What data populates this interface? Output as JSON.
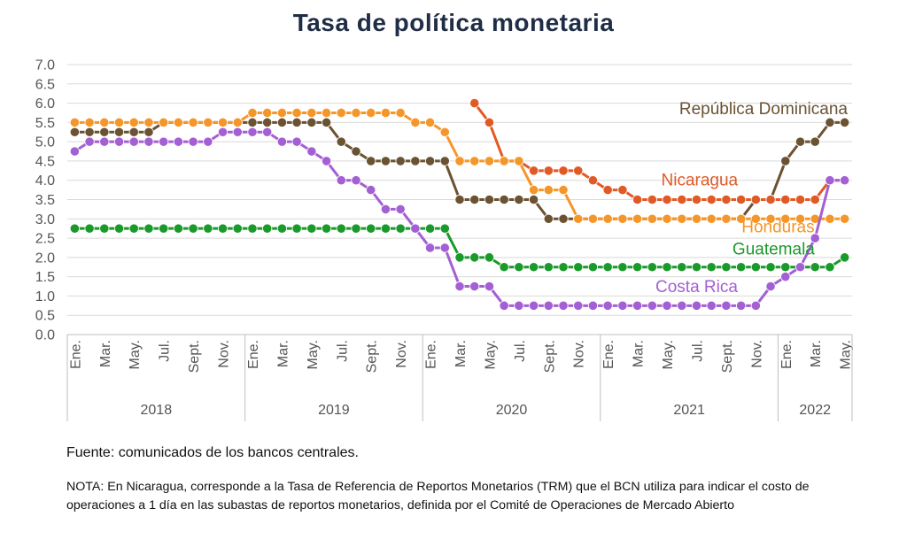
{
  "chart_data": {
    "type": "line",
    "title": "Tasa de política monetaria",
    "xlabel": "",
    "ylabel": "",
    "ylim": [
      0,
      7
    ],
    "yticks": [
      "0.0",
      "0.5",
      "1.0",
      "1.5",
      "2.0",
      "2.5",
      "3.0",
      "3.5",
      "4.0",
      "4.5",
      "5.0",
      "5.5",
      "6.0",
      "6.5",
      "7.0"
    ],
    "x": [
      "2018-01",
      "2018-02",
      "2018-03",
      "2018-04",
      "2018-05",
      "2018-06",
      "2018-07",
      "2018-08",
      "2018-09",
      "2018-10",
      "2018-11",
      "2018-12",
      "2019-01",
      "2019-02",
      "2019-03",
      "2019-04",
      "2019-05",
      "2019-06",
      "2019-07",
      "2019-08",
      "2019-09",
      "2019-10",
      "2019-11",
      "2019-12",
      "2020-01",
      "2020-02",
      "2020-03",
      "2020-04",
      "2020-05",
      "2020-06",
      "2020-07",
      "2020-08",
      "2020-09",
      "2020-10",
      "2020-11",
      "2020-12",
      "2021-01",
      "2021-02",
      "2021-03",
      "2021-04",
      "2021-05",
      "2021-06",
      "2021-07",
      "2021-08",
      "2021-09",
      "2021-10",
      "2021-11",
      "2021-12",
      "2022-01",
      "2022-02",
      "2022-03",
      "2022-04",
      "2022-05"
    ],
    "x_tick_labels": [
      "Ene.",
      "",
      "Mar.",
      "",
      "May.",
      "",
      "Jul.",
      "",
      "Sept.",
      "",
      "Nov.",
      "",
      "Ene.",
      "",
      "Mar.",
      "",
      "May.",
      "",
      "Jul.",
      "",
      "Sept.",
      "",
      "Nov.",
      "",
      "Ene.",
      "",
      "Mar.",
      "",
      "May.",
      "",
      "Jul.",
      "",
      "Sept.",
      "",
      "Nov.",
      "",
      "Ene.",
      "",
      "Mar.",
      "",
      "May.",
      "",
      "Jul.",
      "",
      "Sept.",
      "",
      "Nov.",
      "",
      "Ene.",
      "",
      "Mar.",
      "",
      "May."
    ],
    "year_groups": [
      {
        "label": "2018",
        "start": 0,
        "end": 11
      },
      {
        "label": "2019",
        "start": 12,
        "end": 23
      },
      {
        "label": "2020",
        "start": 24,
        "end": 35
      },
      {
        "label": "2021",
        "start": 36,
        "end": 47
      },
      {
        "label": "2022",
        "start": 48,
        "end": 52
      }
    ],
    "grid": true,
    "legend": "inline labels",
    "series": [
      {
        "name": "República Dominicana",
        "color": "#6b5232",
        "label_anchor": "end",
        "values": [
          5.25,
          5.25,
          5.25,
          5.25,
          5.25,
          5.25,
          5.5,
          5.5,
          5.5,
          5.5,
          5.5,
          5.5,
          5.5,
          5.5,
          5.5,
          5.5,
          5.5,
          5.5,
          5.0,
          4.75,
          4.5,
          4.5,
          4.5,
          4.5,
          4.5,
          4.5,
          3.5,
          3.5,
          3.5,
          3.5,
          3.5,
          3.5,
          3.0,
          3.0,
          3.0,
          3.0,
          3.0,
          3.0,
          3.0,
          3.0,
          3.0,
          3.0,
          3.0,
          3.0,
          3.0,
          3.0,
          3.5,
          3.5,
          4.5,
          5.0,
          5.0,
          5.5,
          5.5
        ]
      },
      {
        "name": "Nicaragua",
        "color": "#e05a26",
        "label_anchor": "middle",
        "values": [
          null,
          null,
          null,
          null,
          null,
          null,
          null,
          null,
          null,
          null,
          null,
          null,
          null,
          null,
          null,
          null,
          null,
          null,
          null,
          null,
          null,
          null,
          null,
          null,
          null,
          null,
          null,
          6.0,
          5.5,
          4.5,
          4.5,
          4.25,
          4.25,
          4.25,
          4.25,
          4.0,
          3.75,
          3.75,
          3.5,
          3.5,
          3.5,
          3.5,
          3.5,
          3.5,
          3.5,
          3.5,
          3.5,
          3.5,
          3.5,
          3.5,
          3.5,
          4.0,
          4.0
        ]
      },
      {
        "name": "Honduras",
        "color": "#f5962a",
        "label_anchor": "middle",
        "values": [
          5.5,
          5.5,
          5.5,
          5.5,
          5.5,
          5.5,
          5.5,
          5.5,
          5.5,
          5.5,
          5.5,
          5.5,
          5.75,
          5.75,
          5.75,
          5.75,
          5.75,
          5.75,
          5.75,
          5.75,
          5.75,
          5.75,
          5.75,
          5.5,
          5.5,
          5.25,
          4.5,
          4.5,
          4.5,
          4.5,
          4.5,
          3.75,
          3.75,
          3.75,
          3.0,
          3.0,
          3.0,
          3.0,
          3.0,
          3.0,
          3.0,
          3.0,
          3.0,
          3.0,
          3.0,
          3.0,
          3.0,
          3.0,
          3.0,
          3.0,
          3.0,
          3.0,
          3.0
        ]
      },
      {
        "name": "Guatemala",
        "color": "#1a9a2a",
        "label_anchor": "middle",
        "values": [
          2.75,
          2.75,
          2.75,
          2.75,
          2.75,
          2.75,
          2.75,
          2.75,
          2.75,
          2.75,
          2.75,
          2.75,
          2.75,
          2.75,
          2.75,
          2.75,
          2.75,
          2.75,
          2.75,
          2.75,
          2.75,
          2.75,
          2.75,
          2.75,
          2.75,
          2.75,
          2.0,
          2.0,
          2.0,
          1.75,
          1.75,
          1.75,
          1.75,
          1.75,
          1.75,
          1.75,
          1.75,
          1.75,
          1.75,
          1.75,
          1.75,
          1.75,
          1.75,
          1.75,
          1.75,
          1.75,
          1.75,
          1.75,
          1.75,
          1.75,
          1.75,
          1.75,
          2.0
        ]
      },
      {
        "name": "Costa Rica",
        "color": "#a45fd4",
        "label_anchor": "middle",
        "values": [
          4.75,
          5.0,
          5.0,
          5.0,
          5.0,
          5.0,
          5.0,
          5.0,
          5.0,
          5.0,
          5.25,
          5.25,
          5.25,
          5.25,
          5.0,
          5.0,
          4.75,
          4.5,
          4.0,
          4.0,
          3.75,
          3.25,
          3.25,
          2.75,
          2.25,
          2.25,
          1.25,
          1.25,
          1.25,
          0.75,
          0.75,
          0.75,
          0.75,
          0.75,
          0.75,
          0.75,
          0.75,
          0.75,
          0.75,
          0.75,
          0.75,
          0.75,
          0.75,
          0.75,
          0.75,
          0.75,
          0.75,
          1.25,
          1.5,
          1.75,
          2.5,
          4.0,
          4.0
        ]
      }
    ]
  },
  "footer": {
    "source": "Fuente: comunicados de los bancos centrales.",
    "note": "NOTA: En Nicaragua, corresponde a la Tasa de Referencia de Reportos Monetarios (TRM) que el BCN utiliza para indicar el costo de operaciones a 1 día en las subastas de reportos monetarios, definida por el Comité de Operaciones de Mercado Abierto"
  }
}
